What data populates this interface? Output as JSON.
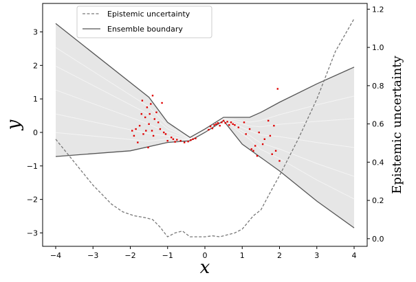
{
  "chart_data": {
    "type": "line",
    "xlabel": "x",
    "ylabel": "y",
    "y2label": "Epistemic uncertainty",
    "xlim": [
      -4.35,
      4.35
    ],
    "ylim": [
      -3.4,
      3.85
    ],
    "y2lim": [
      -0.04,
      1.23
    ],
    "xticks": [
      -4,
      -3,
      -2,
      -1,
      0,
      1,
      2,
      3,
      4
    ],
    "yticks": [
      -3,
      -2,
      -1,
      0,
      1,
      2,
      3
    ],
    "y2ticks": [
      0.0,
      0.2,
      0.4,
      0.6,
      0.8,
      1.0,
      1.2
    ],
    "legend_position": "upper-left",
    "legend": [
      "Epistemic uncertainty",
      "Ensemble boundary"
    ],
    "colors": {
      "band_fill": "#e6e6e6",
      "boundary": "#555555",
      "uncertainty": "#777777",
      "points": "#e00000"
    },
    "series": [
      {
        "name": "Ensemble boundary",
        "axis": "left",
        "upper": [
          [
            -4.0,
            3.25
          ],
          [
            -1.5,
            1.05
          ],
          [
            -1.0,
            0.3
          ],
          [
            -0.4,
            -0.15
          ],
          [
            0.0,
            0.1
          ],
          [
            0.5,
            0.45
          ],
          [
            1.2,
            0.45
          ],
          [
            1.5,
            0.6
          ],
          [
            2.0,
            0.9
          ],
          [
            3.0,
            1.45
          ],
          [
            4.0,
            1.95
          ]
        ],
        "lower": [
          [
            -4.0,
            -0.72
          ],
          [
            -2.0,
            -0.55
          ],
          [
            -1.0,
            -0.3
          ],
          [
            -0.4,
            -0.25
          ],
          [
            0.0,
            0.0
          ],
          [
            0.5,
            0.35
          ],
          [
            1.0,
            -0.35
          ],
          [
            1.5,
            -0.75
          ],
          [
            2.0,
            -1.15
          ],
          [
            3.0,
            -2.05
          ],
          [
            4.0,
            -2.85
          ]
        ]
      },
      {
        "name": "Epistemic uncertainty",
        "axis": "right",
        "style": "dashed",
        "points": [
          [
            -4.0,
            0.52
          ],
          [
            -3.5,
            0.4
          ],
          [
            -3.0,
            0.28
          ],
          [
            -2.5,
            0.18
          ],
          [
            -2.2,
            0.14
          ],
          [
            -1.9,
            0.12
          ],
          [
            -1.6,
            0.11
          ],
          [
            -1.4,
            0.1
          ],
          [
            -1.2,
            0.06
          ],
          [
            -1.0,
            0.01
          ],
          [
            -0.8,
            0.03
          ],
          [
            -0.6,
            0.04
          ],
          [
            -0.4,
            0.01
          ],
          [
            -0.2,
            0.01
          ],
          [
            0.0,
            0.01
          ],
          [
            0.2,
            0.015
          ],
          [
            0.4,
            0.01
          ],
          [
            0.6,
            0.02
          ],
          [
            0.8,
            0.03
          ],
          [
            1.0,
            0.05
          ],
          [
            1.3,
            0.12
          ],
          [
            1.5,
            0.15
          ],
          [
            1.8,
            0.26
          ],
          [
            2.0,
            0.33
          ],
          [
            2.5,
            0.52
          ],
          [
            3.0,
            0.73
          ],
          [
            3.5,
            0.98
          ],
          [
            4.0,
            1.15
          ]
        ]
      },
      {
        "name": "data",
        "axis": "left",
        "type": "scatter",
        "points": [
          [
            -1.95,
            0.05
          ],
          [
            -1.9,
            -0.1
          ],
          [
            -1.85,
            0.1
          ],
          [
            -1.8,
            -0.3
          ],
          [
            -1.75,
            0.2
          ],
          [
            -1.7,
            0.55
          ],
          [
            -1.68,
            0.95
          ],
          [
            -1.65,
            -0.05
          ],
          [
            -1.6,
            0.45
          ],
          [
            -1.58,
            0.05
          ],
          [
            -1.55,
            0.75
          ],
          [
            -1.52,
            -0.45
          ],
          [
            -1.5,
            0.25
          ],
          [
            -1.48,
            0.55
          ],
          [
            -1.45,
            0.85
          ],
          [
            -1.42,
            0.05
          ],
          [
            -1.4,
            1.1
          ],
          [
            -1.38,
            -0.1
          ],
          [
            -1.35,
            0.4
          ],
          [
            -1.3,
            0.6
          ],
          [
            -1.25,
            0.3
          ],
          [
            -1.2,
            0.1
          ],
          [
            -1.15,
            0.88
          ],
          [
            -1.1,
            0.0
          ],
          [
            -1.05,
            -0.05
          ],
          [
            -1.0,
            -0.25
          ],
          [
            -0.9,
            -0.15
          ],
          [
            -0.85,
            -0.2
          ],
          [
            -0.8,
            -0.28
          ],
          [
            -0.75,
            -0.22
          ],
          [
            -0.65,
            -0.25
          ],
          [
            -0.55,
            -0.3
          ],
          [
            -0.45,
            -0.27
          ],
          [
            -0.38,
            -0.23
          ],
          [
            -0.32,
            -0.2
          ],
          [
            -0.25,
            -0.18
          ],
          [
            0.1,
            0.08
          ],
          [
            0.15,
            0.18
          ],
          [
            0.2,
            0.12
          ],
          [
            0.25,
            0.22
          ],
          [
            0.3,
            0.25
          ],
          [
            0.35,
            0.28
          ],
          [
            0.4,
            0.2
          ],
          [
            0.45,
            0.3
          ],
          [
            0.5,
            0.35
          ],
          [
            0.55,
            0.28
          ],
          [
            0.6,
            0.32
          ],
          [
            0.65,
            0.22
          ],
          [
            0.7,
            0.3
          ],
          [
            0.75,
            0.25
          ],
          [
            0.8,
            0.22
          ],
          [
            0.9,
            0.15
          ],
          [
            1.05,
            0.3
          ],
          [
            1.1,
            -0.05
          ],
          [
            1.2,
            0.1
          ],
          [
            1.25,
            -0.5
          ],
          [
            1.3,
            -0.55
          ],
          [
            1.35,
            -0.4
          ],
          [
            1.4,
            -0.7
          ],
          [
            1.45,
            0.0
          ],
          [
            1.55,
            -0.35
          ],
          [
            1.6,
            -0.2
          ],
          [
            1.7,
            0.35
          ],
          [
            1.75,
            -0.1
          ],
          [
            1.8,
            -0.65
          ],
          [
            1.85,
            0.2
          ],
          [
            1.9,
            -0.55
          ],
          [
            1.95,
            1.3
          ],
          [
            2.0,
            -0.85
          ]
        ]
      }
    ]
  }
}
